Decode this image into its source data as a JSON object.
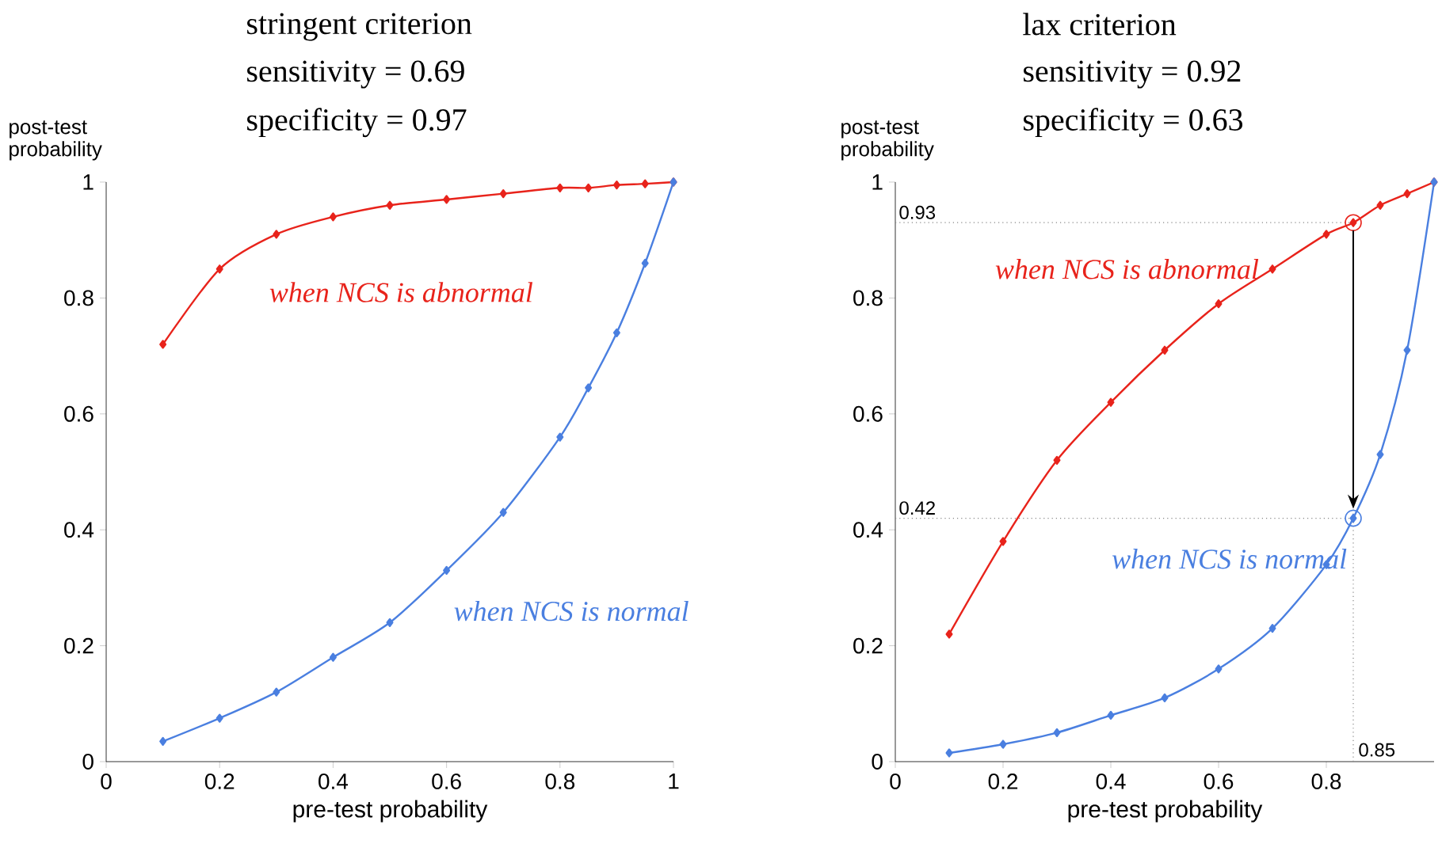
{
  "chart_data": [
    {
      "type": "line",
      "title": "stringent criterion",
      "annotations": [
        "sensitivity = 0.69",
        "specificity = 0.97"
      ],
      "xlabel": "pre-test probability",
      "ylabel": "post-test probability",
      "xlim": [
        0,
        1
      ],
      "ylim": [
        0,
        1
      ],
      "xticks": [
        0,
        0.2,
        0.4,
        0.6,
        0.8,
        1
      ],
      "yticks": [
        0,
        0.2,
        0.4,
        0.6,
        0.8,
        1
      ],
      "marker": "diamond",
      "x": [
        0.1,
        0.2,
        0.3,
        0.4,
        0.5,
        0.6,
        0.7,
        0.8,
        0.85,
        0.9,
        0.95,
        1
      ],
      "series": [
        {
          "name": "when NCS is abnormal",
          "color": "#e8231b",
          "values": [
            0.72,
            0.85,
            0.91,
            0.94,
            0.96,
            0.97,
            0.98,
            0.99,
            0.99,
            0.995,
            0.997,
            1
          ]
        },
        {
          "name": "when NCS is normal",
          "color": "#4a7fe0",
          "values": [
            0.035,
            0.075,
            0.12,
            0.18,
            0.24,
            0.33,
            0.43,
            0.56,
            0.645,
            0.74,
            0.86,
            1
          ]
        }
      ]
    },
    {
      "type": "line",
      "title": "lax criterion",
      "annotations": [
        "sensitivity = 0.92",
        "specificity = 0.63"
      ],
      "xlabel": "pre-test probability",
      "ylabel": "post-test probability",
      "xlim": [
        0,
        1
      ],
      "ylim": [
        0,
        1
      ],
      "xticks": [
        0,
        0.2,
        0.4,
        0.6,
        0.8
      ],
      "yticks": [
        0,
        0.2,
        0.4,
        0.6,
        0.8,
        1
      ],
      "marker": "diamond",
      "x": [
        0.1,
        0.2,
        0.3,
        0.4,
        0.5,
        0.6,
        0.7,
        0.8,
        0.85,
        0.9,
        0.95,
        1
      ],
      "series": [
        {
          "name": "when NCS is abnormal",
          "color": "#e8231b",
          "values": [
            0.22,
            0.38,
            0.52,
            0.62,
            0.71,
            0.79,
            0.85,
            0.91,
            0.93,
            0.96,
            0.98,
            1
          ]
        },
        {
          "name": "when NCS is normal",
          "color": "#4a7fe0",
          "values": [
            0.015,
            0.03,
            0.05,
            0.08,
            0.11,
            0.16,
            0.23,
            0.34,
            0.42,
            0.53,
            0.71,
            1
          ]
        }
      ],
      "ref_lines": [
        {
          "axis": "y",
          "value": 0.93,
          "label": "0.93",
          "color": "#888888",
          "line_style": "dotted"
        },
        {
          "axis": "y",
          "value": 0.42,
          "label": "0.42",
          "color": "#888888",
          "line_style": "dotted"
        },
        {
          "axis": "x",
          "value": 0.85,
          "label": "0.85",
          "color": "#888888",
          "line_style": "dotted"
        }
      ]
    }
  ]
}
